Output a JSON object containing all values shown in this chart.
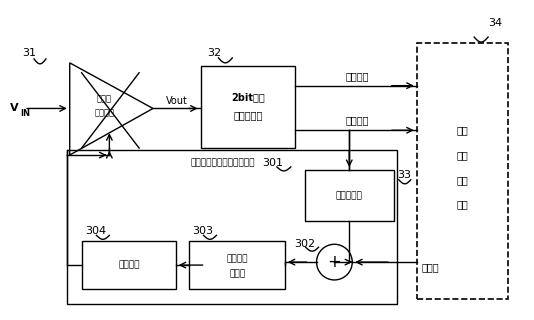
{
  "bg_color": "#ffffff",
  "line_color": "#000000",
  "figsize": [
    5.34,
    3.2
  ],
  "dpi": 100,
  "labels": {
    "label_31": "31",
    "label_32": "32",
    "label_33": "33",
    "label_34": "34",
    "label_301": "301",
    "label_302": "302",
    "label_303": "303",
    "label_304": "304",
    "vin": "V",
    "vin_sub": "IN",
    "vout": "Vout",
    "amp_text1": "可变增",
    "amp_text2": "益放大器",
    "adc_text1": "2bit快闪",
    "adc_text2": "模数转换器",
    "sign_signal": "符号信号",
    "amp_signal": "幅度信号",
    "peak_text1": "峰値检测器",
    "sum_symbol": "+",
    "integrator_text1": "数字积分",
    "integrator_text2": "器电路",
    "decoder_text1": "译码电路",
    "ref_value": "参考値",
    "inv_exp_title": "反指数特性型数字控制电路",
    "digital_bb_1": "数字",
    "digital_bb_2": "基带",
    "digital_bb_3": "处理",
    "digital_bb_4": "节片"
  }
}
